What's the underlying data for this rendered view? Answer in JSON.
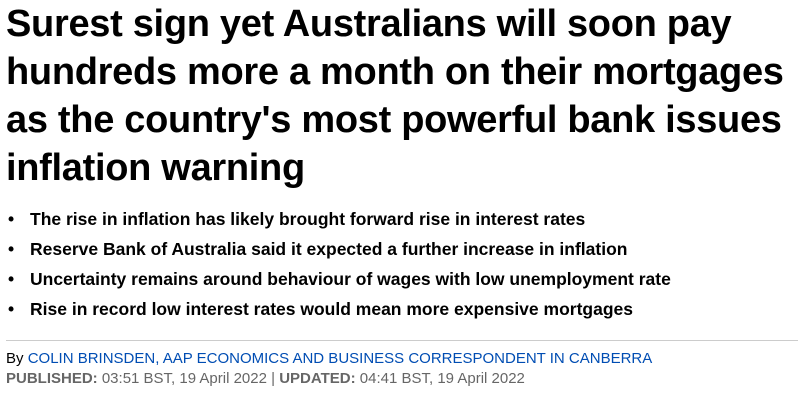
{
  "headline": "Surest sign yet Australians will soon pay hundreds more a month on their mortgages as the country's most powerful bank issues inflation warning",
  "bullets": [
    "The rise in inflation has likely brought forward rise in interest rates",
    "Reserve Bank of Australia said it expected a further increase in inflation",
    "Uncertainty remains around behaviour of wages with low unemployment rate",
    "Rise in record low interest rates would mean more expensive mortgages"
  ],
  "byline": {
    "prefix": "By",
    "author": "COLIN BRINSDEN, AAP ECONOMICS AND BUSINESS CORRESPONDENT IN CANBERRA"
  },
  "published": {
    "label": "PUBLISHED:",
    "value": "03:51 BST, 19 April 2022"
  },
  "separator": "|",
  "updated": {
    "label": "UPDATED:",
    "value": "04:41 BST, 19 April 2022"
  }
}
